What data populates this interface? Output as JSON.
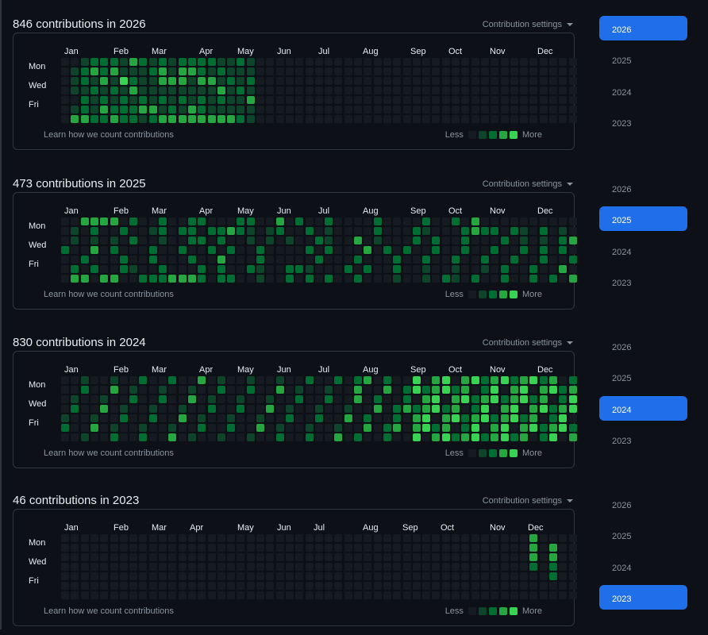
{
  "colors": {
    "level0": "#161b22",
    "level1": "#0e4429",
    "level2": "#006d32",
    "level3": "#26a641",
    "level4": "#39d353",
    "selected_year": "#1f6feb"
  },
  "common": {
    "settings_label": "Contribution settings",
    "learn_label": "Learn how we count contributions",
    "less_label": "Less",
    "more_label": "More",
    "day_labels": [
      "Mon",
      "Wed",
      "Fri"
    ]
  },
  "sections": [
    {
      "title": "846 contributions in 2026",
      "months": [
        "Jan",
        "Feb",
        "Mar",
        "Apr",
        "May",
        "Jun",
        "Jul",
        "Aug",
        "Sep",
        "Oct",
        "Nov",
        "Dec"
      ],
      "selected_year": "2026",
      "activity": [
        ".11222231212222211212",
        ".22231111231332121111",
        ".21314211333133121212",
        ".11212131111111131211",
        ".21212121212121211312",
        ".12132223312132111111",
        ".33223221233333333213"
      ]
    },
    {
      "title": "473 contributions in 2025",
      "months": [
        "Jan",
        "Feb",
        "Mar",
        "Apr",
        "May",
        "Jun",
        "Jul",
        "Aug",
        "Sep",
        "Oct",
        "Nov",
        "Dec"
      ],
      "selected_year": "2025",
      "activity": [
        ".3332.22..2.22..2.22.2..1.121.1..1.2.1..1..21.3.1.1..11..1",
        ".1.1..2.1.2.22.2212.1..2..2.1.2.2..1..3.2..221..2..1.22.1.",
        ".1.1.1.2.1.1..22.2.1.1..2..2..3...1..1.1..2.2..1.1.1.2.23",
        "2.2..2.2..2..1..2...1...1.1.3.1.2..2..1.2.2.2.2.1.2.1.121.",
        ".1..2..1..2..1..2..1...2.1..1.2..1...2..1..2.1..2...2.1.1.",
        ".2.2..21..2..1.2..21..2..21..1.2..2..1..1..1.2..2..1..3.2.",
        ".33.33..2223332.22..1..2.2.2..2...1..1.21.2..2..2.2.3.2.2."
      ]
    },
    {
      "title": "830 contributions in 2024",
      "months": [
        "Jan",
        "Feb",
        "Mar",
        "Apr",
        "May",
        "Jun",
        "Jul",
        "Aug",
        "Sep",
        "Oct",
        "Nov",
        "Dec"
      ],
      "selected_year": "2024",
      "activity": [
        ".1.1..3..1..1..2..1..1..2..1..1..2..1..2.1.2.2.22323213224342323",
        "2....1..2..1..3..1..2..2.1.1..1..2..1..1..2..1.2..232.2.2.3.2.2.2.3",
        "3....1....2....1..1..2..2..1....1..2.1..1..2..2.1..1.23.2.2.1.3.2.2",
        "1..1..1..1..2..1..1..2..2...1...2..1..2..2..2.3.2.2.3.2.23.22.2.2.2",
        ".2.2..1..2..1..2..1..1..2..1..2.1..2.1..32..1..3.2.3.2.23.23.2.22.2",
        ".3.2..1..2.1..2..1..2..1.2..1..3.2..1..2..2..1.23.2.3.22.2.2.2.3.22",
        ".3.2.2..1..3.1..2..1.2.2..1..2..2..2.1..2.2..2..23223.2.2.2.3.23.22"
      ]
    },
    {
      "title": "46 contributions in 2023",
      "months": [
        "Jan",
        "Feb",
        "Mar",
        "Apr",
        "May",
        "Jun",
        "Jul",
        "Aug",
        "Sep",
        "Oct",
        "Nov",
        "Dec"
      ],
      "selected_year": "2023",
      "activity": [
        "...............................................................................",
        "...........................................................................3.",
        "..........................................................................3.3",
        "...........................................................................2.",
        ".............................................................................3",
        "...............................................................................",
        "..............................................................................."
      ]
    }
  ],
  "years": [
    "2026",
    "2025",
    "2024",
    "2023"
  ]
}
